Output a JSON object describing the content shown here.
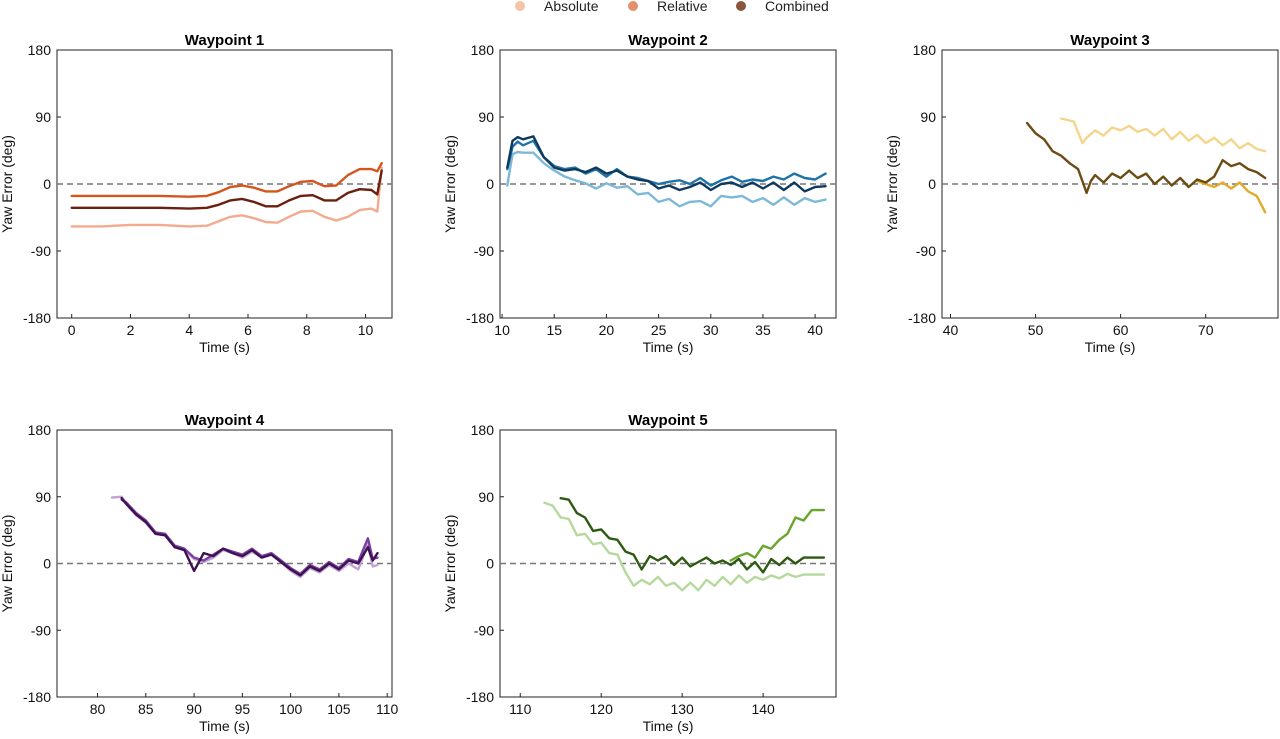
{
  "legend": [
    {
      "label": "Absolute",
      "color": "#f4c3a8"
    },
    {
      "label": "Relative",
      "color": "#e3906b"
    },
    {
      "label": "Combined",
      "color": "#8a553d"
    }
  ],
  "chart_data": [
    {
      "type": "line",
      "title": "Waypoint 1",
      "xlabel": "Time (s)",
      "ylabel": "Yaw Error (deg)",
      "xlim": [
        -0.5,
        10.9
      ],
      "xticks": [
        0,
        2,
        4,
        6,
        8,
        10
      ],
      "ylim": [
        -180,
        180
      ],
      "yticks": [
        -180,
        -90,
        0,
        90,
        180
      ],
      "reference_line": 0,
      "series": [
        {
          "name": "Absolute",
          "color": "#f2ab8f",
          "x": [
            0,
            1,
            2,
            3,
            4,
            4.6,
            5,
            5.4,
            5.8,
            6.2,
            6.6,
            7,
            7.4,
            7.8,
            8.2,
            8.6,
            9,
            9.4,
            9.8,
            10.2,
            10.4,
            10.55
          ],
          "y": [
            -57,
            -57,
            -55,
            -55,
            -57,
            -56,
            -50,
            -44,
            -42,
            -46,
            -51,
            -52,
            -44,
            -37,
            -36,
            -44,
            -49,
            -44,
            -35,
            -33,
            -37,
            22
          ]
        },
        {
          "name": "Relative",
          "color": "#d4551e",
          "x": [
            0,
            1,
            2,
            3,
            4,
            4.6,
            5,
            5.4,
            5.8,
            6.2,
            6.6,
            7,
            7.4,
            7.8,
            8.2,
            8.6,
            9,
            9.4,
            9.8,
            10.2,
            10.4,
            10.55
          ],
          "y": [
            -16,
            -16,
            -16,
            -16,
            -17,
            -16,
            -11,
            -4,
            -2,
            -5,
            -10,
            -10,
            -3,
            3,
            4,
            -3,
            -2,
            12,
            20,
            20,
            17,
            28
          ]
        },
        {
          "name": "Combined",
          "color": "#6b1f0e",
          "x": [
            0,
            1,
            2,
            3,
            4,
            4.6,
            5,
            5.4,
            5.8,
            6.2,
            6.6,
            7,
            7.4,
            7.8,
            8.2,
            8.6,
            9,
            9.4,
            9.8,
            10.2,
            10.4,
            10.55
          ],
          "y": [
            -32,
            -32,
            -32,
            -32,
            -33,
            -32,
            -28,
            -22,
            -20,
            -24,
            -30,
            -30,
            -22,
            -16,
            -15,
            -22,
            -22,
            -12,
            -7,
            -8,
            -14,
            18
          ]
        }
      ]
    },
    {
      "type": "line",
      "title": "Waypoint 2",
      "xlabel": "Time (s)",
      "ylabel": "Yaw Error (deg)",
      "xlim": [
        9.8,
        42
      ],
      "xticks": [
        10,
        15,
        20,
        25,
        30,
        35,
        40
      ],
      "ylim": [
        -180,
        180
      ],
      "yticks": [
        -180,
        -90,
        0,
        90,
        180
      ],
      "reference_line": 0,
      "series": [
        {
          "name": "Absolute",
          "color": "#7cb8d8",
          "x": [
            10.5,
            11,
            11.5,
            12,
            13,
            14,
            15,
            16,
            17,
            18,
            19,
            20,
            21,
            22,
            23,
            24,
            25,
            26,
            27,
            28,
            29,
            30,
            31,
            32,
            33,
            34,
            35,
            36,
            37,
            38,
            39,
            40,
            41
          ],
          "y": [
            -2,
            40,
            43,
            42,
            42,
            28,
            18,
            10,
            5,
            1,
            -6,
            1,
            -5,
            -3,
            -14,
            -12,
            -24,
            -20,
            -30,
            -24,
            -23,
            -30,
            -16,
            -18,
            -16,
            -24,
            -19,
            -28,
            -18,
            -28,
            -19,
            -24,
            -21
          ]
        },
        {
          "name": "Relative",
          "color": "#1f73a8",
          "x": [
            10.5,
            11,
            11.5,
            12,
            13,
            14,
            15,
            16,
            17,
            18,
            19,
            20,
            21,
            22,
            23,
            24,
            25,
            26,
            27,
            28,
            29,
            30,
            31,
            32,
            33,
            34,
            35,
            36,
            37,
            38,
            39,
            40,
            41
          ],
          "y": [
            20,
            50,
            57,
            52,
            58,
            36,
            24,
            20,
            22,
            14,
            20,
            10,
            20,
            10,
            8,
            4,
            0,
            3,
            5,
            0,
            8,
            -2,
            5,
            10,
            3,
            6,
            4,
            10,
            6,
            14,
            8,
            6,
            14
          ]
        },
        {
          "name": "Combined",
          "color": "#0f3a5e",
          "x": [
            10.5,
            11,
            11.5,
            12,
            13,
            14,
            15,
            16,
            17,
            18,
            19,
            20,
            21,
            22,
            23,
            24,
            25,
            26,
            27,
            28,
            29,
            30,
            31,
            32,
            33,
            34,
            35,
            36,
            37,
            38,
            39,
            40,
            41
          ],
          "y": [
            22,
            58,
            63,
            60,
            64,
            36,
            22,
            18,
            20,
            16,
            22,
            14,
            18,
            10,
            6,
            4,
            -6,
            -2,
            -8,
            -4,
            2,
            -8,
            0,
            2,
            -4,
            2,
            -6,
            2,
            -8,
            2,
            -10,
            -4,
            -3
          ]
        }
      ]
    },
    {
      "type": "line",
      "title": "Waypoint 3",
      "xlabel": "Time (s)",
      "ylabel": "Yaw Error (deg)",
      "xlim": [
        39,
        78.5
      ],
      "xticks": [
        40,
        50,
        60,
        70
      ],
      "ylim": [
        -180,
        180
      ],
      "yticks": [
        -180,
        -90,
        0,
        90,
        180
      ],
      "reference_line": 0,
      "series": [
        {
          "name": "Absolute",
          "color": "#f5d58c",
          "x": [
            53,
            54.5,
            55.5,
            56,
            57,
            58,
            59,
            60,
            61,
            62,
            63,
            64,
            65,
            66,
            67,
            68,
            69,
            70,
            71,
            72,
            73,
            74,
            75,
            76,
            77
          ],
          "y": [
            88,
            84,
            55,
            62,
            72,
            65,
            76,
            72,
            78,
            70,
            74,
            65,
            74,
            60,
            70,
            58,
            66,
            55,
            62,
            52,
            60,
            48,
            55,
            47,
            44
          ]
        },
        {
          "name": "Relative",
          "color": "#e3aa28",
          "x": [
            69,
            70,
            71,
            72,
            73,
            74,
            75,
            76,
            77
          ],
          "y": [
            4,
            0,
            -4,
            2,
            -6,
            2,
            -10,
            -16,
            -38
          ]
        },
        {
          "name": "Combined",
          "color": "#6b4c12",
          "x": [
            49,
            50,
            51,
            52,
            53,
            54,
            55,
            56,
            56.5,
            57,
            58,
            59,
            60,
            61,
            62,
            63,
            64,
            65,
            66,
            67,
            68,
            69,
            70,
            71,
            72,
            73,
            74,
            75,
            76,
            77
          ],
          "y": [
            82,
            68,
            60,
            44,
            38,
            28,
            20,
            -12,
            4,
            12,
            2,
            14,
            8,
            18,
            8,
            14,
            0,
            10,
            -2,
            8,
            -4,
            6,
            2,
            10,
            32,
            24,
            28,
            20,
            16,
            8
          ]
        }
      ]
    },
    {
      "type": "line",
      "title": "Waypoint 4",
      "xlabel": "Time (s)",
      "ylabel": "Yaw Error (deg)",
      "xlim": [
        75.8,
        110.5
      ],
      "xticks": [
        80,
        85,
        90,
        95,
        100,
        105,
        110
      ],
      "ylim": [
        -180,
        180
      ],
      "yticks": [
        -180,
        -90,
        0,
        90,
        180
      ],
      "reference_line": 0,
      "series": [
        {
          "name": "Absolute",
          "color": "#c4a2d4",
          "x": [
            81.5,
            82.5,
            83,
            84,
            85,
            86,
            87,
            88,
            89,
            90,
            91,
            92,
            93,
            94,
            95,
            96,
            97,
            98,
            99,
            100,
            101,
            102,
            103,
            104,
            105,
            106,
            107,
            108,
            108.5,
            109
          ],
          "y": [
            89,
            90,
            80,
            65,
            55,
            40,
            38,
            22,
            18,
            6,
            2,
            8,
            18,
            14,
            8,
            16,
            8,
            12,
            2,
            -10,
            -18,
            -6,
            -12,
            -2,
            -10,
            0,
            -8,
            26,
            -4,
            -2
          ]
        },
        {
          "name": "Relative",
          "color": "#7a3fa0",
          "x": [
            82.5,
            83,
            84,
            85,
            86,
            87,
            88,
            89,
            90,
            91,
            92,
            93,
            94,
            95,
            96,
            97,
            98,
            99,
            100,
            101,
            102,
            103,
            104,
            105,
            106,
            107,
            108,
            108.5,
            109
          ],
          "y": [
            86,
            82,
            68,
            58,
            42,
            40,
            24,
            20,
            8,
            4,
            12,
            20,
            16,
            12,
            20,
            10,
            14,
            4,
            -6,
            -14,
            -2,
            -8,
            2,
            -6,
            6,
            2,
            34,
            6,
            8
          ]
        },
        {
          "name": "Combined",
          "color": "#3e1152",
          "x": [
            82.5,
            83,
            84,
            85,
            86,
            87,
            88,
            89,
            90,
            91,
            92,
            93,
            94,
            95,
            96,
            97,
            98,
            99,
            100,
            101,
            102,
            103,
            104,
            105,
            106,
            107,
            108,
            108.5,
            109
          ],
          "y": [
            88,
            80,
            66,
            56,
            40,
            38,
            22,
            18,
            -10,
            14,
            10,
            20,
            14,
            10,
            18,
            8,
            12,
            2,
            -8,
            -16,
            -4,
            -10,
            0,
            -8,
            4,
            0,
            22,
            4,
            14
          ]
        }
      ]
    },
    {
      "type": "line",
      "title": "Waypoint 5",
      "xlabel": "Time (s)",
      "ylabel": "Yaw Error (deg)",
      "xlim": [
        107.5,
        149
      ],
      "xticks": [
        110,
        120,
        130,
        140
      ],
      "ylim": [
        -180,
        180
      ],
      "yticks": [
        -180,
        -90,
        0,
        90,
        180
      ],
      "reference_line": 0,
      "series": [
        {
          "name": "Absolute",
          "color": "#b5d99c",
          "x": [
            113,
            114,
            115,
            116,
            117,
            118,
            119,
            120,
            121,
            122,
            123,
            124,
            125,
            126,
            127,
            128,
            129,
            130,
            131,
            132,
            133,
            134,
            135,
            136,
            137,
            138,
            139,
            140,
            141,
            142,
            143,
            144,
            145,
            146,
            147.5
          ],
          "y": [
            82,
            78,
            62,
            60,
            38,
            40,
            26,
            28,
            14,
            12,
            -12,
            -30,
            -22,
            -28,
            -18,
            -30,
            -26,
            -36,
            -26,
            -36,
            -22,
            -30,
            -18,
            -28,
            -16,
            -26,
            -18,
            -22,
            -16,
            -20,
            -14,
            -18,
            -15,
            -15,
            -15
          ]
        },
        {
          "name": "Relative",
          "color": "#6aa62e",
          "x": [
            136,
            137,
            138,
            139,
            140,
            141,
            142,
            143,
            144,
            145,
            146,
            147.5
          ],
          "y": [
            4,
            10,
            14,
            8,
            24,
            20,
            32,
            40,
            62,
            58,
            72,
            72
          ]
        },
        {
          "name": "Combined",
          "color": "#2d5a12",
          "x": [
            115,
            116,
            117,
            118,
            119,
            120,
            121,
            122,
            123,
            124,
            125,
            126,
            127,
            128,
            129,
            130,
            131,
            132,
            133,
            134,
            135,
            136,
            137,
            138,
            139,
            140,
            141,
            142,
            143,
            144,
            145,
            146,
            147.5
          ],
          "y": [
            88,
            86,
            68,
            62,
            44,
            46,
            34,
            32,
            16,
            12,
            -8,
            10,
            4,
            10,
            -2,
            8,
            -4,
            2,
            8,
            0,
            4,
            -2,
            6,
            -8,
            2,
            -12,
            6,
            -2,
            8,
            0,
            8,
            8,
            8
          ]
        }
      ]
    }
  ]
}
